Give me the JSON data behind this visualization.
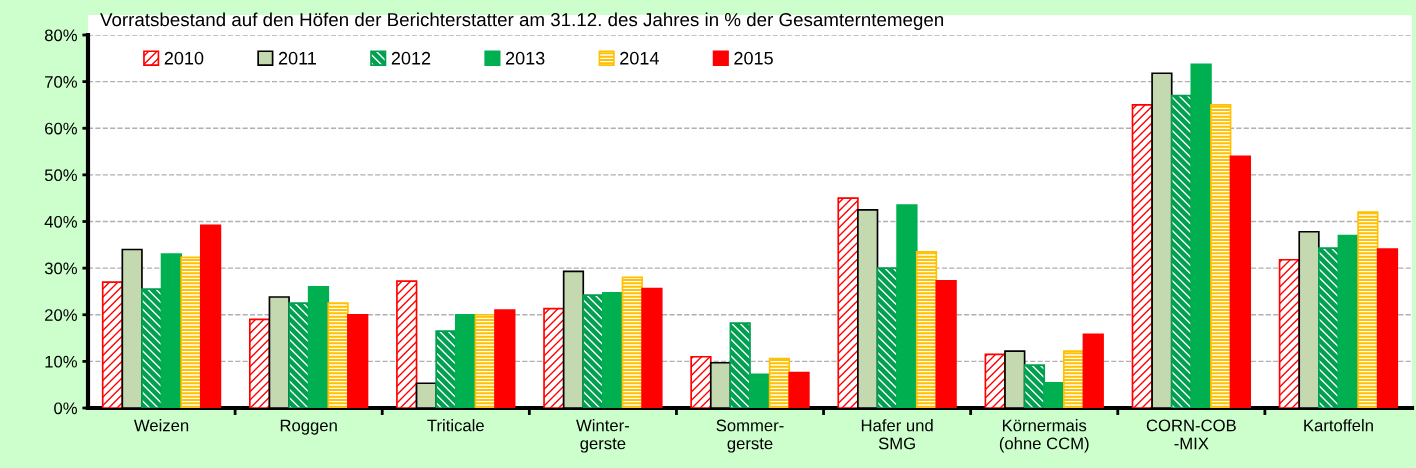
{
  "chart_data": {
    "type": "bar",
    "title": "Vorratsbestand auf den Höfen der Berichterstatter am 31.12. des Jahres in % der Gesamterntemegen",
    "categories": [
      "Weizen",
      "Roggen",
      "Triticale",
      "Winter-\ngerste",
      "Sommer-\ngerste",
      "Hafer und\nSMG",
      "Körnermais\n(ohne CCM)",
      "CORN-COB\n-MIX",
      "Kartoffeln"
    ],
    "series": [
      {
        "name": "2010",
        "color": "#ff0000",
        "values": [
          27,
          19,
          27.2,
          21.3,
          11,
          45,
          11.5,
          65,
          31.8
        ]
      },
      {
        "name": "2011",
        "color": "#c4d9b0",
        "values": [
          34,
          23.8,
          5.3,
          29.3,
          9.7,
          42.5,
          12.2,
          71.8,
          37.8
        ]
      },
      {
        "name": "2012",
        "color": "#00a050",
        "values": [
          25.5,
          22.5,
          16.5,
          24.2,
          18.2,
          30,
          9.2,
          67,
          34.3
        ]
      },
      {
        "name": "2013",
        "color": "#00b050",
        "values": [
          33,
          26,
          20,
          24.7,
          7.2,
          43.5,
          5.4,
          73.7,
          37
        ]
      },
      {
        "name": "2014",
        "color": "#ffc000",
        "values": [
          32.3,
          22.5,
          20,
          28,
          10.6,
          33.5,
          12.2,
          65,
          42
        ]
      },
      {
        "name": "2015",
        "color": "#ff0000",
        "values": [
          39.2,
          20,
          21,
          25.6,
          7.6,
          27.3,
          15.8,
          54,
          34.1
        ]
      }
    ],
    "ylim": [
      0,
      80
    ],
    "yticks": [
      {
        "value": 0,
        "label": "0%"
      },
      {
        "value": 10,
        "label": "10%"
      },
      {
        "value": 20,
        "label": "20%"
      },
      {
        "value": 30,
        "label": "30%"
      },
      {
        "value": 40,
        "label": "40%"
      },
      {
        "value": 50,
        "label": "50%"
      },
      {
        "value": 60,
        "label": "60%"
      },
      {
        "value": 70,
        "label": "70%"
      },
      {
        "value": 80,
        "label": "80%"
      }
    ],
    "grid": "y",
    "legend": "top left"
  }
}
